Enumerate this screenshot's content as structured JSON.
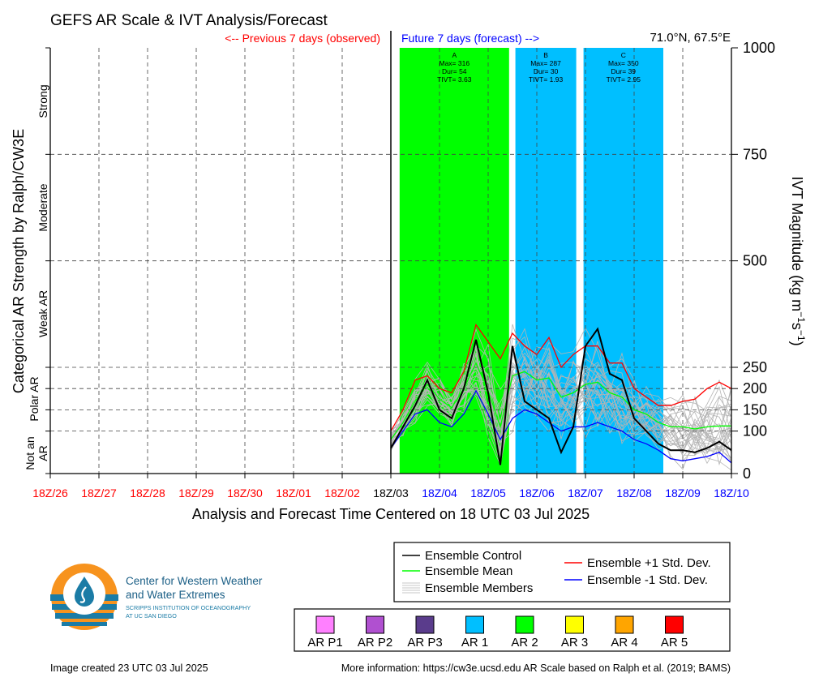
{
  "header": {
    "title": "GEFS AR Scale & IVT Analysis/Forecast",
    "observed_label": "<-- Previous 7 days (observed)",
    "forecast_label": "Future 7 days (forecast) -->",
    "location": "71.0°N, 67.5°E"
  },
  "axes": {
    "left_title": "Categorical AR Strength by Ralph/CW3E",
    "right_title_main": "IVT Magnitude (kg m",
    "right_title_exp1": "−1",
    "right_title_mid": "s",
    "right_title_exp2": "−1",
    "right_title_end": ")",
    "x_title": "Analysis and Forecast Time Centered on 18 UTC 03 Jul 2025",
    "category_labels": [
      "Strong",
      "Moderate",
      "Weak AR",
      "Polar AR",
      "Not an",
      "AR"
    ]
  },
  "colors": {
    "ar2": "#00ff00",
    "ar1": "#00bfff",
    "control": "#000000",
    "mean": "#00ff00",
    "plus_std": "#ff0000",
    "minus_std": "#0000ff",
    "members": "#b4b4b4",
    "observed_tick": "#ff0000",
    "forecast_tick": "#0000ff"
  },
  "chart_data": {
    "type": "line",
    "title": "GEFS AR Scale & IVT Analysis/Forecast",
    "xlabel": "Analysis and Forecast Time Centered on 18 UTC 03 Jul 2025",
    "ylabel": "IVT Magnitude (kg m-1 s-1)",
    "ylim": [
      0,
      1000
    ],
    "y_ticks": [
      0,
      100,
      150,
      200,
      250,
      500,
      750,
      1000
    ],
    "x_ticks": [
      "18Z/26",
      "18Z/27",
      "18Z/28",
      "18Z/29",
      "18Z/30",
      "18Z/01",
      "18Z/02",
      "18Z/03",
      "18Z/04",
      "18Z/05",
      "18Z/06",
      "18Z/07",
      "18Z/08",
      "18Z/09",
      "18Z/10"
    ],
    "x_tick_groups": [
      "observed",
      "observed",
      "observed",
      "observed",
      "observed",
      "observed",
      "observed",
      "now",
      "forecast",
      "forecast",
      "forecast",
      "forecast",
      "forecast",
      "forecast",
      "forecast"
    ],
    "grid": true,
    "ar_periods": [
      {
        "label": "A",
        "start_day": 7.18,
        "end_day": 9.43,
        "category": "AR 2",
        "max_text": "Max= 316",
        "dur_text": "Dur= 54",
        "tivt_text": "TIVT= 3.63"
      },
      {
        "label": "B",
        "start_day": 9.56,
        "end_day": 10.81,
        "category": "AR 1",
        "max_text": "Max= 287",
        "dur_text": "Dur= 30",
        "tivt_text": "TIVT= 1.93"
      },
      {
        "label": "C",
        "start_day": 10.96,
        "end_day": 12.6,
        "category": "AR 1",
        "max_text": "Max= 350",
        "dur_text": "Dur= 39",
        "tivt_text": "TIVT= 2.95"
      }
    ],
    "x_days": [
      7.0,
      7.25,
      7.5,
      7.75,
      8.0,
      8.25,
      8.5,
      8.75,
      9.0,
      9.25,
      9.5,
      9.75,
      10.0,
      10.25,
      10.5,
      10.75,
      11.0,
      11.25,
      11.5,
      11.75,
      12.0,
      12.25,
      12.5,
      12.75,
      13.0,
      13.25,
      13.5,
      13.75,
      14.0
    ],
    "series": [
      {
        "name": "Ensemble Control",
        "values": [
          60,
          110,
          160,
          220,
          150,
          130,
          200,
          315,
          190,
          20,
          300,
          170,
          150,
          130,
          50,
          110,
          300,
          340,
          235,
          220,
          130,
          100,
          70,
          55,
          55,
          50,
          60,
          75,
          55
        ]
      },
      {
        "name": "Ensemble Mean",
        "values": [
          80,
          120,
          170,
          210,
          175,
          155,
          200,
          260,
          195,
          110,
          230,
          240,
          220,
          225,
          180,
          190,
          210,
          215,
          190,
          180,
          150,
          140,
          120,
          110,
          110,
          105,
          110,
          112,
          112
        ]
      },
      {
        "name": "Ensemble +1 Std. Dev.",
        "values": [
          100,
          150,
          220,
          230,
          200,
          190,
          240,
          350,
          310,
          270,
          330,
          300,
          280,
          320,
          250,
          280,
          300,
          300,
          260,
          260,
          200,
          180,
          160,
          160,
          170,
          175,
          200,
          215,
          200
        ]
      },
      {
        "name": "Ensemble -1 Std. Dev.",
        "values": [
          60,
          100,
          140,
          150,
          120,
          110,
          140,
          195,
          140,
          80,
          130,
          150,
          140,
          120,
          100,
          110,
          110,
          120,
          110,
          100,
          80,
          70,
          55,
          35,
          30,
          35,
          40,
          50,
          25
        ]
      }
    ]
  },
  "legend_lines": [
    {
      "name": "Ensemble Control"
    },
    {
      "name": "Ensemble Mean"
    },
    {
      "name": "Ensemble Members"
    },
    {
      "name": "Ensemble +1 Std. Dev."
    },
    {
      "name": "Ensemble -1 Std. Dev."
    }
  ],
  "legend_categories": [
    {
      "label": "AR P1",
      "color": "#ff80ff"
    },
    {
      "label": "AR P2",
      "color": "#b050d0"
    },
    {
      "label": "AR P3",
      "color": "#5a3c8c"
    },
    {
      "label": "AR 1",
      "color": "#00bfff"
    },
    {
      "label": "AR 2",
      "color": "#00ff00"
    },
    {
      "label": "AR 3",
      "color": "#ffff00"
    },
    {
      "label": "AR 4",
      "color": "#ffa500"
    },
    {
      "label": "AR 5",
      "color": "#ff0000"
    }
  ],
  "logo": {
    "line1": "Center for Western Weather",
    "line2": "and Water Extremes",
    "line3": "SCRIPPS INSTITUTION OF OCEANOGRAPHY",
    "line4": "AT UC SAN DIEGO"
  },
  "footer": {
    "created": "Image created 23 UTC 03 Jul 2025",
    "more_info": "More information: https://cw3e.ucsd.edu AR Scale based on Ralph et al. (2019; BAMS)"
  }
}
